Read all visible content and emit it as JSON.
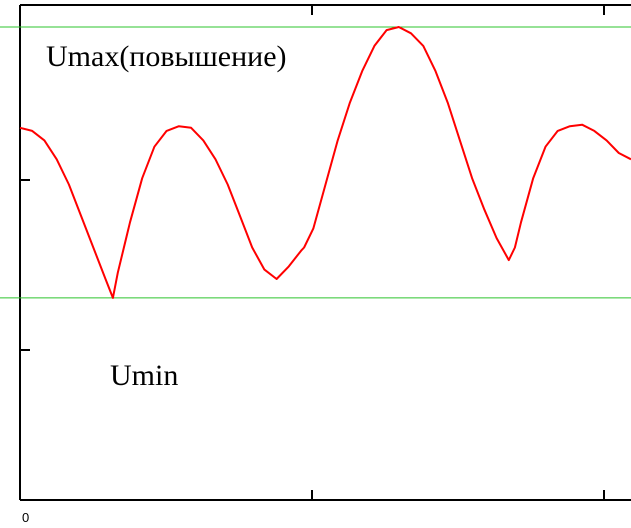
{
  "colors": {
    "curve": "#ff0000",
    "reference_lines": "#2ec42e",
    "axes": "#000000",
    "background": "#ffffff"
  },
  "chart_data": {
    "type": "line",
    "title": "",
    "xlabel": "",
    "ylabel": "",
    "x_tick_labels": [
      "0"
    ],
    "xlim": [
      0,
      1
    ],
    "ylim": [
      0,
      1
    ],
    "grid": false,
    "legend": "none",
    "series": [
      {
        "x": [
          0,
          0.02,
          0.04,
          0.06,
          0.08,
          0.1,
          0.12,
          0.14,
          0.152,
          0.16,
          0.18,
          0.2,
          0.22,
          0.24,
          0.26,
          0.28,
          0.3,
          0.32,
          0.34,
          0.36,
          0.38,
          0.4,
          0.42,
          0.44,
          0.46,
          0.465,
          0.48,
          0.5,
          0.52,
          0.54,
          0.56,
          0.58,
          0.6,
          0.62,
          0.64,
          0.66,
          0.68,
          0.7,
          0.72,
          0.74,
          0.76,
          0.78,
          0.8,
          0.81,
          0.82,
          0.84,
          0.86,
          0.88,
          0.9,
          0.92,
          0.94,
          0.96,
          0.98,
          1.0
        ],
        "y": [
          0.68,
          0.67,
          0.64,
          0.58,
          0.5,
          0.4,
          0.3,
          0.2,
          0.14,
          0.22,
          0.38,
          0.52,
          0.62,
          0.67,
          0.685,
          0.68,
          0.64,
          0.58,
          0.5,
          0.4,
          0.3,
          0.23,
          0.2,
          0.24,
          0.29,
          0.3,
          0.36,
          0.5,
          0.64,
          0.76,
          0.86,
          0.94,
          0.99,
          1.0,
          0.98,
          0.94,
          0.86,
          0.76,
          0.64,
          0.52,
          0.42,
          0.33,
          0.26,
          0.3,
          0.38,
          0.52,
          0.62,
          0.67,
          0.685,
          0.69,
          0.67,
          0.64,
          0.6,
          0.58
        ]
      }
    ],
    "reference_lines": [
      {
        "y": 1.0
      },
      {
        "y": 0.14
      }
    ],
    "annotations": [
      {
        "text": "Umax(повышение)"
      },
      {
        "text": "Umin"
      }
    ]
  }
}
